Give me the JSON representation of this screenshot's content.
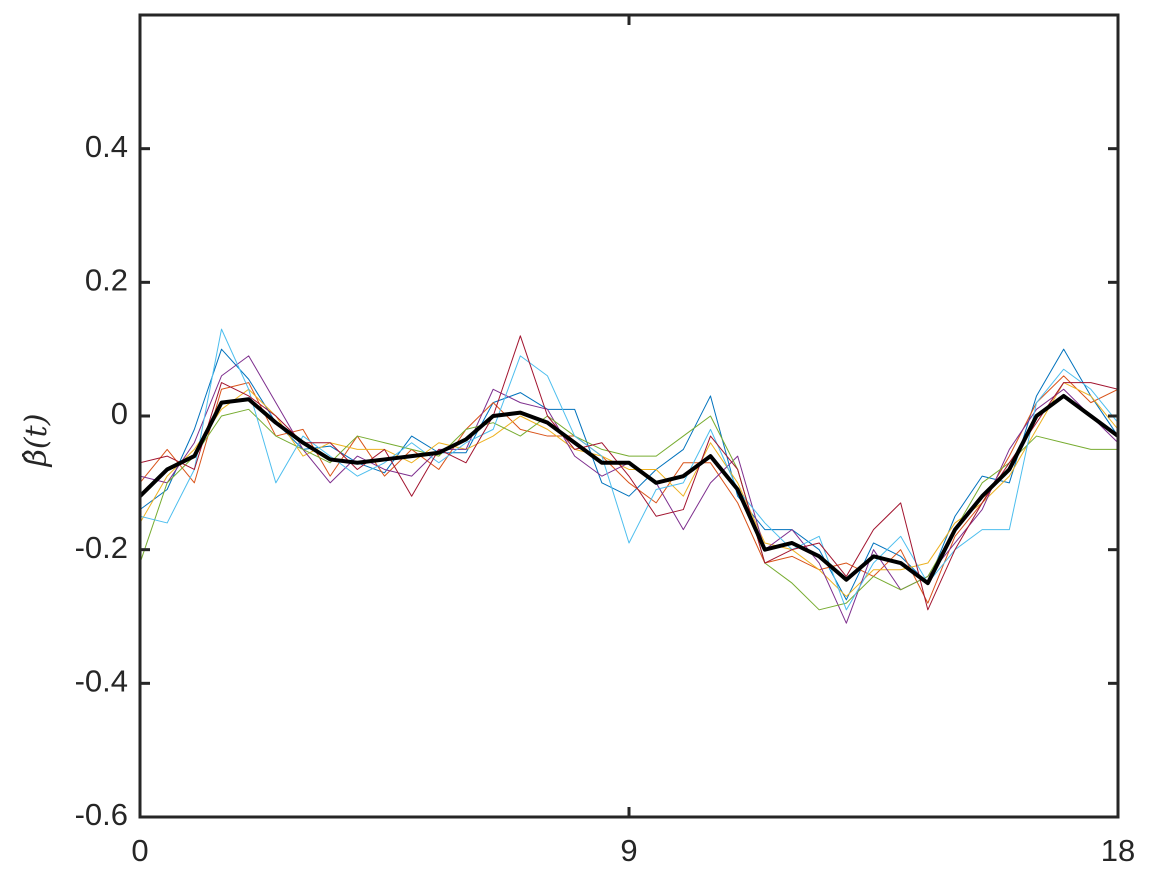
{
  "chart_data": {
    "type": "line",
    "y_label": "β̂(t)",
    "x": [
      0,
      0.5,
      1,
      1.5,
      2,
      2.5,
      3,
      3.5,
      4,
      4.5,
      5,
      5.5,
      6,
      6.5,
      7,
      7.5,
      8,
      8.5,
      9,
      9.5,
      10,
      10.5,
      11,
      11.5,
      12,
      12.5,
      13,
      13.5,
      14,
      14.5,
      15,
      15.5,
      16,
      16.5,
      17,
      17.5,
      18
    ],
    "series": [
      {
        "color": "#0072BD",
        "line_width": 1,
        "values": [
          -0.14,
          -0.11,
          -0.02,
          0.1,
          0.055,
          -0.01,
          -0.05,
          -0.045,
          -0.07,
          -0.085,
          -0.03,
          -0.055,
          -0.055,
          0.02,
          0.035,
          0.01,
          0.01,
          -0.1,
          -0.12,
          -0.08,
          -0.05,
          0.03,
          -0.12,
          -0.17,
          -0.17,
          -0.2,
          -0.275,
          -0.19,
          -0.21,
          -0.25,
          -0.15,
          -0.09,
          -0.1,
          0.03,
          0.1,
          0.03,
          -0.03
        ]
      },
      {
        "color": "#D95319",
        "line_width": 1,
        "values": [
          -0.1,
          -0.05,
          -0.1,
          0.04,
          0.05,
          -0.03,
          -0.02,
          -0.09,
          -0.03,
          -0.09,
          -0.05,
          -0.08,
          -0.02,
          0.02,
          -0.02,
          -0.03,
          -0.03,
          -0.06,
          -0.1,
          -0.13,
          -0.07,
          -0.07,
          -0.13,
          -0.22,
          -0.21,
          -0.23,
          -0.22,
          -0.24,
          -0.2,
          -0.28,
          -0.18,
          -0.13,
          -0.06,
          0.02,
          0.06,
          0.02,
          0.04
        ]
      },
      {
        "color": "#EDB120",
        "line_width": 1,
        "values": [
          -0.16,
          -0.09,
          -0.05,
          0.01,
          0.04,
          0.0,
          -0.06,
          -0.04,
          -0.05,
          -0.05,
          -0.07,
          -0.04,
          -0.05,
          -0.03,
          0.0,
          -0.02,
          -0.05,
          -0.06,
          -0.08,
          -0.08,
          -0.12,
          -0.04,
          -0.1,
          -0.19,
          -0.2,
          -0.23,
          -0.27,
          -0.23,
          -0.23,
          -0.22,
          -0.16,
          -0.13,
          -0.09,
          -0.02,
          0.05,
          0.03,
          -0.02
        ]
      },
      {
        "color": "#7E2F8E",
        "line_width": 1,
        "values": [
          -0.09,
          -0.1,
          -0.04,
          0.06,
          0.09,
          0.02,
          -0.05,
          -0.1,
          -0.06,
          -0.08,
          -0.09,
          -0.05,
          -0.05,
          0.04,
          0.02,
          0.01,
          -0.06,
          -0.09,
          -0.07,
          -0.1,
          -0.17,
          -0.1,
          -0.06,
          -0.2,
          -0.17,
          -0.22,
          -0.31,
          -0.2,
          -0.26,
          -0.24,
          -0.19,
          -0.14,
          -0.05,
          0.01,
          0.04,
          0.0,
          -0.04
        ]
      },
      {
        "color": "#77AC30",
        "line_width": 1,
        "values": [
          -0.22,
          -0.1,
          -0.06,
          0.0,
          0.01,
          -0.03,
          -0.05,
          -0.07,
          -0.03,
          -0.04,
          -0.05,
          -0.06,
          -0.02,
          -0.01,
          -0.03,
          0.0,
          -0.03,
          -0.05,
          -0.06,
          -0.06,
          -0.03,
          0.0,
          -0.08,
          -0.22,
          -0.25,
          -0.29,
          -0.28,
          -0.24,
          -0.26,
          -0.24,
          -0.17,
          -0.1,
          -0.07,
          -0.03,
          -0.04,
          -0.05,
          -0.05
        ]
      },
      {
        "color": "#4DBEEE",
        "line_width": 1,
        "values": [
          -0.15,
          -0.16,
          -0.08,
          0.13,
          0.04,
          -0.1,
          -0.03,
          -0.06,
          -0.09,
          -0.07,
          -0.04,
          -0.07,
          -0.04,
          -0.02,
          0.09,
          0.06,
          -0.03,
          -0.06,
          -0.19,
          -0.11,
          -0.1,
          -0.02,
          -0.11,
          -0.16,
          -0.2,
          -0.18,
          -0.29,
          -0.22,
          -0.18,
          -0.25,
          -0.2,
          -0.17,
          -0.17,
          0.02,
          0.07,
          0.04,
          -0.01
        ]
      },
      {
        "color": "#A2142F",
        "line_width": 1,
        "values": [
          -0.07,
          -0.06,
          -0.08,
          0.05,
          0.03,
          0.0,
          -0.04,
          -0.04,
          -0.08,
          -0.05,
          -0.12,
          -0.05,
          -0.07,
          0.0,
          0.12,
          0.0,
          -0.05,
          -0.04,
          -0.09,
          -0.15,
          -0.14,
          -0.03,
          -0.08,
          -0.22,
          -0.2,
          -0.19,
          -0.24,
          -0.17,
          -0.13,
          -0.29,
          -0.2,
          -0.13,
          -0.07,
          -0.01,
          0.05,
          0.05,
          0.04
        ]
      },
      {
        "color": "#000000",
        "line_width": 4,
        "values": [
          -0.12,
          -0.08,
          -0.06,
          0.02,
          0.025,
          -0.01,
          -0.04,
          -0.065,
          -0.07,
          -0.065,
          -0.06,
          -0.055,
          -0.035,
          0.0,
          0.005,
          -0.01,
          -0.04,
          -0.07,
          -0.07,
          -0.1,
          -0.09,
          -0.06,
          -0.11,
          -0.2,
          -0.19,
          -0.21,
          -0.245,
          -0.21,
          -0.22,
          -0.25,
          -0.17,
          -0.12,
          -0.08,
          0.0,
          0.03,
          0.0,
          -0.03
        ]
      }
    ],
    "xlim": [
      0,
      18
    ],
    "xticks": [
      0,
      9,
      18
    ],
    "ylim": [
      -0.6,
      0.6
    ],
    "yticks": [
      -0.6,
      -0.4,
      -0.2,
      0,
      0.2,
      0.4
    ],
    "grid": false
  }
}
